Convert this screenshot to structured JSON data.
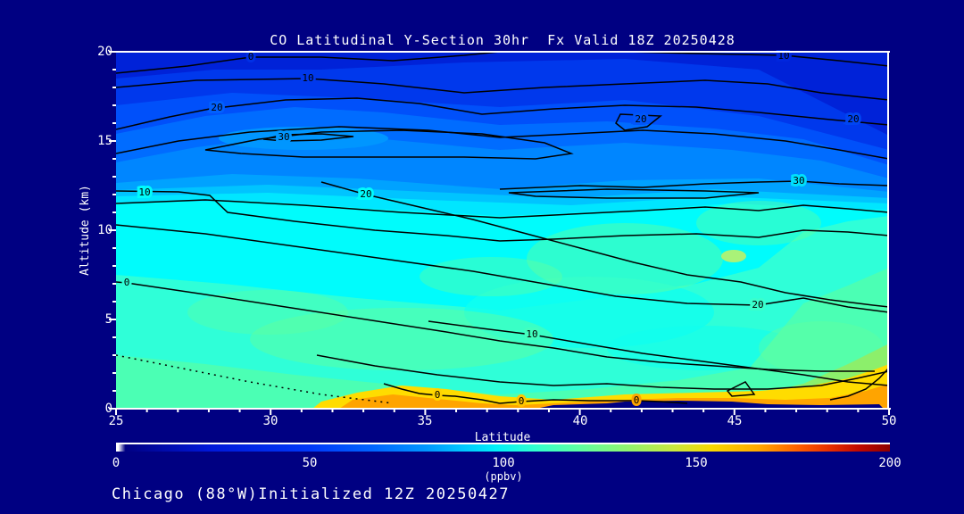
{
  "title": "CO Latitudinal Y-Section 30hr  Fx Valid 18Z 20250428",
  "footer": "Chicago (88°W)Initialized 12Z 20250427",
  "colors": {
    "background": "#000082",
    "text": "#ffffff",
    "contour_line": "#000000",
    "plume_orange": "#ffa400",
    "cyan_mid": "#00fcfc",
    "deep_blue_top": "#0022d8"
  },
  "axes": {
    "y": {
      "label": "Altitude (km)",
      "ticks": [
        "20",
        "15",
        "10",
        "5",
        "0"
      ]
    },
    "x": {
      "label": "Latitude",
      "ticks": [
        "25",
        "30",
        "35",
        "40",
        "45",
        "50"
      ]
    }
  },
  "colorbar": {
    "units": "(ppbv)",
    "ticks": [
      "0",
      "50",
      "100",
      "150",
      "200"
    ]
  },
  "plot": {
    "contour_labels": [
      {
        "text": "0"
      },
      {
        "text": "10"
      },
      {
        "text": "10"
      },
      {
        "text": "20"
      },
      {
        "text": "20"
      },
      {
        "text": "30"
      },
      {
        "text": "20"
      },
      {
        "text": "30"
      },
      {
        "text": "10"
      },
      {
        "text": "20"
      },
      {
        "text": "20"
      },
      {
        "text": "10"
      },
      {
        "text": "0"
      },
      {
        "text": "0"
      },
      {
        "text": "0"
      },
      {
        "text": "0"
      }
    ]
  },
  "chart_data": {
    "type": "heatmap",
    "title": "CO Latitudinal Y-Section 30hr  Fx Valid 18Z 20250428",
    "subtitle": "Chicago (88°W)Initialized 12Z 20250427",
    "xlabel": "Latitude",
    "ylabel": "Altitude (km)",
    "x_range": [
      25,
      50
    ],
    "y_range": [
      0,
      20
    ],
    "grid": false,
    "colorbar": {
      "label": "(ppbv)",
      "range": [
        0,
        200
      ],
      "ticks": [
        0,
        50,
        100,
        150,
        200
      ]
    },
    "x": [
      25,
      30,
      35,
      40,
      45,
      50
    ],
    "y_altitude_km": [
      0,
      1,
      3,
      6,
      9,
      11,
      13,
      15,
      18,
      20
    ],
    "values_ppbv_rows_by_altitude": [
      [
        112,
        118,
        165,
        160,
        165,
        150
      ],
      [
        110,
        115,
        150,
        138,
        142,
        140
      ],
      [
        112,
        115,
        118,
        120,
        118,
        128
      ],
      [
        112,
        112,
        115,
        112,
        110,
        118
      ],
      [
        100,
        100,
        105,
        108,
        112,
        112
      ],
      [
        95,
        95,
        95,
        92,
        90,
        95
      ],
      [
        75,
        80,
        75,
        70,
        65,
        60
      ],
      [
        60,
        65,
        60,
        50,
        40,
        35
      ],
      [
        40,
        35,
        30,
        25,
        20,
        15
      ],
      [
        25,
        20,
        18,
        15,
        12,
        10
      ]
    ],
    "overlay_contour_lines": {
      "values": [
        0,
        10,
        20,
        30
      ],
      "note": "black solid isolines labeled 0/10/20/30; dotted line lower-left indicates below-0; navy strip at surface lat 39-50 is terrain mask"
    }
  }
}
